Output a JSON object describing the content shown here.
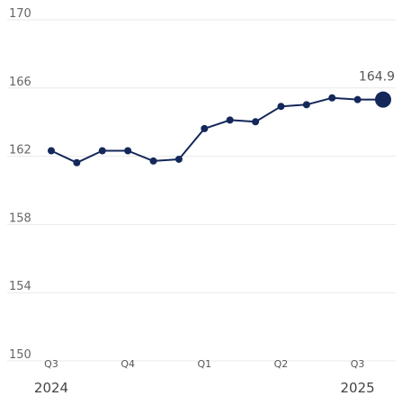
{
  "chart_data": {
    "type": "line",
    "title": "",
    "xlabel": "",
    "ylabel": "",
    "ylim": [
      150,
      170
    ],
    "yticks": [
      150,
      154,
      158,
      162,
      166,
      170
    ],
    "grid": true,
    "quarter_ticks": [
      {
        "label": "Q3",
        "index": 0
      },
      {
        "label": "Q4",
        "index": 3
      },
      {
        "label": "Q1",
        "index": 6
      },
      {
        "label": "Q2",
        "index": 9
      },
      {
        "label": "Q3",
        "index": 12
      }
    ],
    "year_labels": [
      {
        "label": "2024",
        "index": 0
      },
      {
        "label": "2025",
        "index": 12
      }
    ],
    "series": [
      {
        "color": "#14285a",
        "values": [
          161.9,
          161.2,
          161.9,
          161.9,
          161.3,
          161.4,
          163.2,
          163.7,
          163.6,
          164.5,
          164.6,
          165.0,
          164.9,
          164.9
        ]
      }
    ],
    "last_value_label": "164.9"
  }
}
